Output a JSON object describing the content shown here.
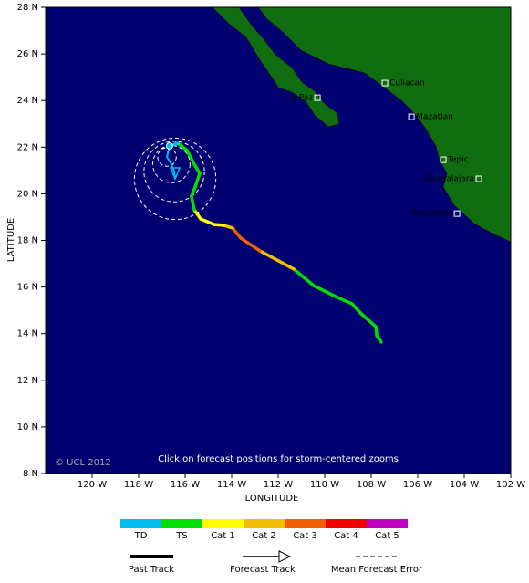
{
  "chart_data": {
    "type": "map",
    "x_label": "LONGITUDE",
    "y_label": "LATITUDE",
    "xlim": [
      -122,
      -102
    ],
    "ylim": [
      8,
      28
    ],
    "xticks": [
      {
        "value": -120,
        "label": "120 W"
      },
      {
        "value": -118,
        "label": "118 W"
      },
      {
        "value": -116,
        "label": "116 W"
      },
      {
        "value": -114,
        "label": "114 W"
      },
      {
        "value": -112,
        "label": "112 W"
      },
      {
        "value": -110,
        "label": "110 W"
      },
      {
        "value": -108,
        "label": "108 W"
      },
      {
        "value": -106,
        "label": "106 W"
      },
      {
        "value": -104,
        "label": "104 W"
      },
      {
        "value": -102,
        "label": "102 W"
      }
    ],
    "yticks": [
      {
        "value": 8,
        "label": "8 N"
      },
      {
        "value": 10,
        "label": "10 N"
      },
      {
        "value": 12,
        "label": "12 N"
      },
      {
        "value": 14,
        "label": "14 N"
      },
      {
        "value": 16,
        "label": "16 N"
      },
      {
        "value": 18,
        "label": "18 N"
      },
      {
        "value": 20,
        "label": "20 N"
      },
      {
        "value": 22,
        "label": "22 N"
      },
      {
        "value": 24,
        "label": "24 N"
      },
      {
        "value": 26,
        "label": "26 N"
      },
      {
        "value": 28,
        "label": "28 N"
      }
    ],
    "copyright": "© UCL 2012",
    "note": "Click on forecast positions for storm-centered zooms",
    "cities": [
      {
        "name": "Culiacan",
        "lon": -107.41,
        "lat": 24.75
      },
      {
        "name": "La Paz",
        "lon": -110.31,
        "lat": 24.12
      },
      {
        "name": "Mazatlan",
        "lon": -106.27,
        "lat": 23.3
      },
      {
        "name": "Tepic",
        "lon": -104.9,
        "lat": 21.46
      },
      {
        "name": "Guadalajara",
        "lon": -103.37,
        "lat": 20.64
      },
      {
        "name": "Manzanillo",
        "lon": -104.31,
        "lat": 19.15
      }
    ],
    "past_track": {
      "lon": [
        -107.57,
        -107.76,
        -107.8,
        -108.47,
        -108.82,
        -109.45,
        -110.47,
        -111.33,
        -112.78,
        -113.61,
        -113.96,
        -114.35,
        -114.75,
        -115.33,
        -115.61,
        -115.73,
        -115.57,
        -115.37,
        -115.61,
        -115.92,
        -116.31,
        -116.67
      ],
      "lat": [
        13.64,
        13.91,
        14.3,
        14.89,
        15.28,
        15.55,
        16.06,
        16.77,
        17.55,
        18.1,
        18.53,
        18.65,
        18.68,
        18.92,
        19.31,
        19.9,
        20.29,
        20.88,
        21.27,
        21.86,
        22.17,
        22.05
      ],
      "colors": [
        "#00e000",
        "#00e000",
        "#00e000",
        "#00e000",
        "#00e000",
        "#00e000",
        "#00e000",
        "#f0c000",
        "#f06000",
        "#f06000",
        "#f0c000",
        "#ffff00",
        "#ffff00",
        "#ffff00",
        "#00e000",
        "#00e000",
        "#00e000",
        "#00e000",
        "#00e000",
        "#00e000",
        "#00c0f0",
        "#00c0f0"
      ]
    },
    "forecast_track": {
      "color": "#00c0f0",
      "lon": [
        -116.67,
        -116.78,
        -116.59,
        -116.47,
        -116.43
      ],
      "lat": [
        22.05,
        21.58,
        21.27,
        20.95,
        20.64
      ],
      "error_radius": [
        null,
        0.4,
        0.8,
        1.3,
        1.75
      ]
    },
    "intensity_legend": [
      {
        "label": "TD",
        "color": "#00c0f0"
      },
      {
        "label": "TS",
        "color": "#00e000"
      },
      {
        "label": "Cat 1",
        "color": "#ffff00"
      },
      {
        "label": "Cat 2",
        "color": "#f0c000"
      },
      {
        "label": "Cat 3",
        "color": "#f06000"
      },
      {
        "label": "Cat 4",
        "color": "#f00000"
      },
      {
        "label": "Cat 5",
        "color": "#c000c0"
      }
    ],
    "line_legend": [
      "Past Track",
      "Forecast Track",
      "Mean Forecast Error"
    ]
  }
}
